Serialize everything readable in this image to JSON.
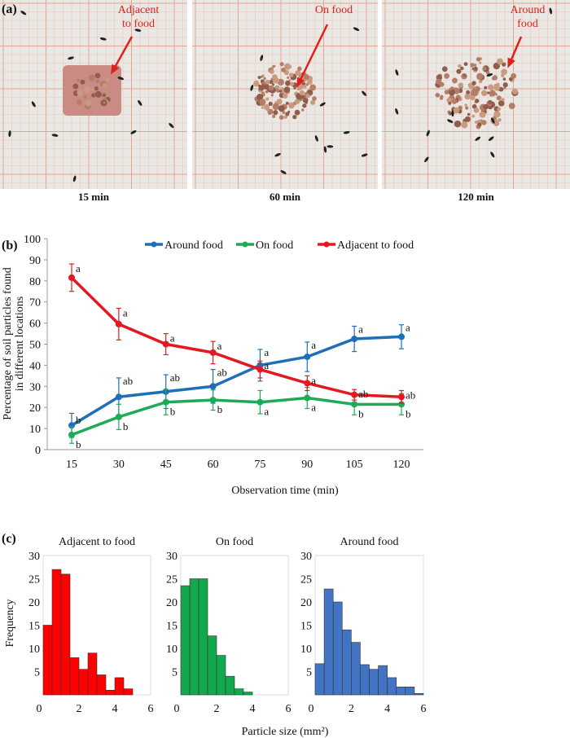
{
  "panel_a": {
    "label": "(a)",
    "photos": [
      {
        "time": "15 min",
        "annotation": "Adjacent to food",
        "annotation_lines": [
          "Adjacent",
          "to food"
        ]
      },
      {
        "time": "60 min",
        "annotation": "On food",
        "annotation_lines": [
          "On food"
        ]
      },
      {
        "time": "120 min",
        "annotation": "Around food",
        "annotation_lines": [
          "Around",
          "food"
        ]
      }
    ],
    "annotation_color": "#e0201c"
  },
  "panel_b": {
    "label": "(b)"
  },
  "panel_c": {
    "label": "(c)"
  },
  "chart_data": [
    {
      "type": "line",
      "xlabel": "Observation time (min)",
      "ylabel": "Percentage of soil particles found in different locations",
      "ylabel_lines": [
        "Percentage of soil particles found",
        "in different locations"
      ],
      "x": [
        15,
        30,
        45,
        60,
        75,
        90,
        105,
        120
      ],
      "xticks": [
        "15",
        "30",
        "45",
        "60",
        "75",
        "90",
        "105",
        "120"
      ],
      "ylim": [
        0,
        100
      ],
      "yticks": [
        "0",
        "10",
        "20",
        "30",
        "40",
        "50",
        "60",
        "70",
        "80",
        "90",
        "100"
      ],
      "grid": false,
      "legend": "top",
      "series": [
        {
          "name": "Around food",
          "color": "#1f6fb8",
          "values": [
            11.5,
            25,
            27.5,
            30,
            40,
            44,
            52.5,
            53.5
          ],
          "errors": [
            5.7,
            9,
            8,
            8,
            7.5,
            7,
            6,
            5.7
          ],
          "letters": [
            "b",
            "ab",
            "ab",
            "ab",
            "a",
            "a",
            "a",
            "a"
          ]
        },
        {
          "name": "On food",
          "color": "#1faa5a",
          "values": [
            7,
            15.5,
            22.5,
            23.5,
            22.5,
            24.5,
            21.5,
            21.5
          ],
          "errors": [
            4,
            6,
            6,
            4.8,
            5.5,
            5,
            5,
            5
          ],
          "letters": [
            "b",
            "b",
            "b",
            "b",
            "a",
            "a",
            "b",
            "b"
          ]
        },
        {
          "name": "Adjacent to food",
          "color": "#e3191f",
          "values": [
            81.5,
            59.5,
            50,
            46,
            38,
            31.5,
            26,
            25
          ],
          "errors": [
            6.5,
            7.5,
            5,
            5.3,
            4,
            3.5,
            2.5,
            3
          ],
          "letters": [
            "a",
            "a",
            "a",
            "a",
            "a",
            "a",
            "ab",
            "ab"
          ]
        }
      ]
    },
    {
      "type": "bar",
      "title": "Adjacent to food",
      "ylabel": "Frequency",
      "xlabel": "Particle size (mm²)",
      "color": "#ff0000",
      "bin_width": 0.5,
      "bin_starts": [
        0,
        0.5,
        1,
        1.5,
        2,
        2.5,
        3,
        3.5,
        4,
        4.5
      ],
      "values": [
        15,
        27,
        26,
        8,
        5.5,
        9,
        4.3,
        1,
        3.7,
        1.3
      ],
      "xlim": [
        0,
        6
      ],
      "ylim": [
        0,
        30
      ],
      "xticks": [
        "0",
        "2",
        "4",
        "6"
      ],
      "yticks": [
        "5",
        "10",
        "15",
        "20",
        "25",
        "30"
      ]
    },
    {
      "type": "bar",
      "title": "On food",
      "color": "#12a94c",
      "bin_width": 0.5,
      "bin_starts": [
        0,
        0.5,
        1,
        1.5,
        2,
        2.5,
        3,
        3.5
      ],
      "values": [
        23.5,
        25,
        25,
        12.7,
        8.5,
        4,
        1.3,
        0.6
      ],
      "xlim": [
        0,
        6
      ],
      "ylim": [
        0,
        30
      ],
      "xticks": [
        "0",
        "2",
        "4",
        "6"
      ],
      "yticks": [
        "5",
        "10",
        "15",
        "20",
        "25",
        "30"
      ]
    },
    {
      "type": "bar",
      "title": "Around food",
      "color": "#4374c4",
      "bin_width": 0.5,
      "bin_starts": [
        0,
        0.5,
        1,
        1.5,
        2,
        2.5,
        3,
        3.5,
        4,
        4.5,
        5,
        5.5
      ],
      "values": [
        6.7,
        22.8,
        20,
        14,
        11.3,
        6.5,
        5.5,
        6.3,
        3.7,
        1.7,
        1.7,
        0.3
      ],
      "xlim": [
        0,
        6
      ],
      "ylim": [
        0,
        30
      ],
      "xticks": [
        "0",
        "2",
        "4",
        "6"
      ],
      "yticks": [
        "5",
        "10",
        "15",
        "20",
        "25",
        "30"
      ]
    }
  ]
}
